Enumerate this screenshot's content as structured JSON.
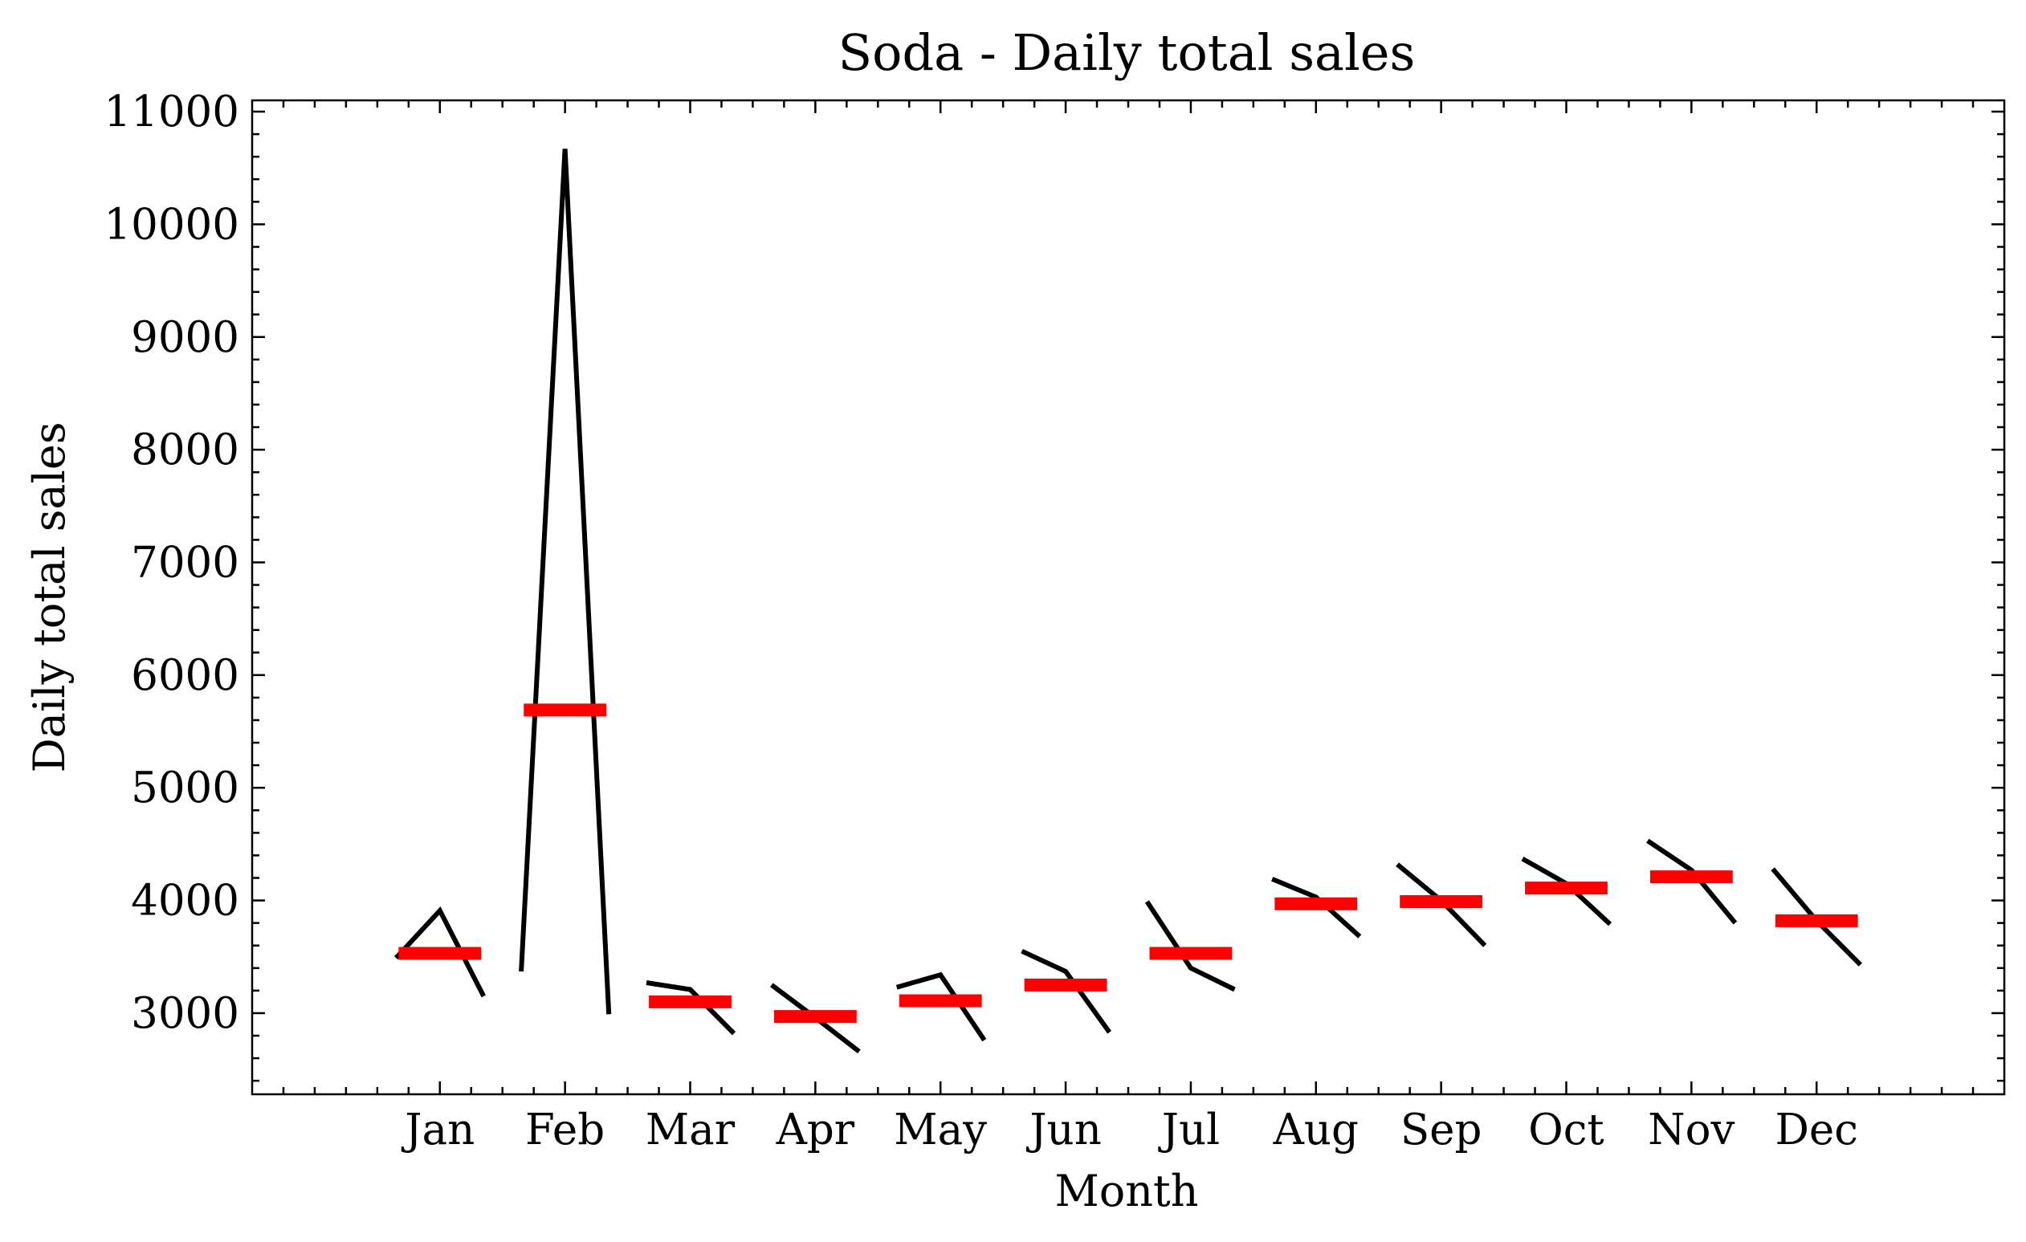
{
  "chart_data": {
    "type": "line",
    "title": "Soda - Daily total sales",
    "xlabel": "Month",
    "ylabel": "Daily total sales",
    "ylim": [
      2280,
      11100
    ],
    "yticks": [
      3000,
      4000,
      5000,
      6000,
      7000,
      8000,
      9000,
      10000,
      11000
    ],
    "categories": [
      "Jan",
      "Feb",
      "Mar",
      "Apr",
      "May",
      "Jun",
      "Jul",
      "Aug",
      "Sep",
      "Oct",
      "Nov",
      "Dec"
    ],
    "grid": false,
    "series": [
      {
        "values": [
          [
            3490,
            3910,
            3150
          ],
          [
            3370,
            10670,
            2990
          ],
          [
            3270,
            3210,
            2820
          ],
          [
            3250,
            2960,
            2660
          ],
          [
            3230,
            3340,
            2760
          ],
          [
            3550,
            3370,
            2830
          ],
          [
            3990,
            3400,
            3210
          ],
          [
            4190,
            4030,
            3680
          ],
          [
            4320,
            4000,
            3600
          ],
          [
            4370,
            4150,
            3790
          ],
          [
            4530,
            4270,
            3800
          ],
          [
            4280,
            3820,
            3430
          ]
        ]
      },
      {
        "values": [
          3530,
          5690,
          3100,
          2970,
          3110,
          3250,
          3530,
          3970,
          3990,
          4110,
          4210,
          3820
        ]
      }
    ],
    "colors": {
      "line": "#000000",
      "mean": "#ff0000"
    }
  }
}
